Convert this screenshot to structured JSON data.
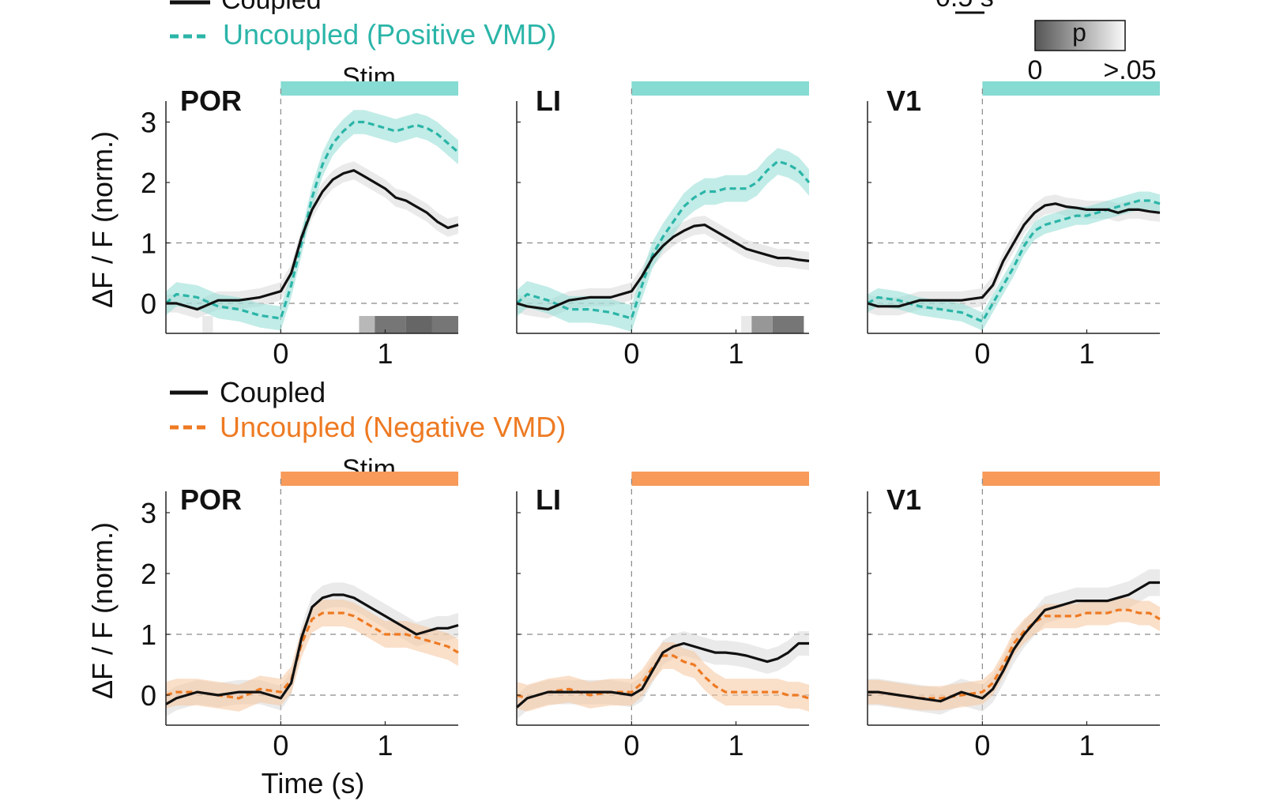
{
  "figure": {
    "scale_bar_label": "0.5 s",
    "colorbar": {
      "title": "p",
      "min_label": "0",
      "max_label": ">.05"
    }
  },
  "colors": {
    "coupled": "#111111",
    "uncoupled_positive": "#2bb5a8",
    "uncoupled_positive_band": "#8fdcd3",
    "uncoupled_negative": "#ee7a22",
    "uncoupled_negative_band": "#f5c59c",
    "stim_positive": "#86dbd2",
    "stim_negative": "#f79a5a",
    "coupled_band": "#d9d9d9"
  },
  "chart_data": [
    {
      "type": "line",
      "row": "top",
      "legend": [
        "Coupled",
        "Uncoupled (Positive VMD)"
      ],
      "stim_label": "Stim",
      "ylabel": "ΔF / F (norm.)",
      "xlabel": "",
      "xlim": [
        -1.1,
        1.7
      ],
      "ylim": [
        -0.5,
        3.3
      ],
      "xticks": [
        0,
        1
      ],
      "yticks": [
        0,
        1,
        2,
        3
      ],
      "panels": [
        {
          "title": "POR",
          "series": [
            {
              "name": "Coupled",
              "x": [
                -1.1,
                -1.0,
                -0.8,
                -0.6,
                -0.4,
                -0.2,
                0.0,
                0.1,
                0.2,
                0.3,
                0.4,
                0.5,
                0.6,
                0.7,
                0.8,
                0.9,
                1.0,
                1.1,
                1.2,
                1.3,
                1.4,
                1.5,
                1.6,
                1.7
              ],
              "y": [
                0.0,
                0.0,
                -0.1,
                0.05,
                0.05,
                0.1,
                0.2,
                0.5,
                1.1,
                1.55,
                1.85,
                2.05,
                2.15,
                2.2,
                2.1,
                2.0,
                1.9,
                1.75,
                1.7,
                1.6,
                1.5,
                1.35,
                1.25,
                1.3
              ],
              "err": 0.15
            },
            {
              "name": "Uncoupled (Positive VMD)",
              "x": [
                -1.1,
                -1.0,
                -0.8,
                -0.6,
                -0.4,
                -0.2,
                0.0,
                0.1,
                0.2,
                0.3,
                0.4,
                0.5,
                0.6,
                0.7,
                0.8,
                0.9,
                1.0,
                1.1,
                1.2,
                1.3,
                1.4,
                1.5,
                1.6,
                1.7
              ],
              "y": [
                0.0,
                0.15,
                0.1,
                -0.05,
                -0.1,
                -0.2,
                -0.25,
                0.3,
                1.0,
                1.75,
                2.3,
                2.65,
                2.85,
                3.0,
                3.0,
                2.95,
                2.9,
                2.85,
                2.9,
                2.95,
                2.9,
                2.8,
                2.65,
                2.5
              ],
              "err": 0.2
            }
          ],
          "significance": [
            {
              "x0": -0.75,
              "x1": -0.65,
              "p": 0.045
            },
            {
              "x0": 0.75,
              "x1": 0.9,
              "p": 0.03
            },
            {
              "x0": 0.9,
              "x1": 1.2,
              "p": 0.01
            },
            {
              "x0": 1.2,
              "x1": 1.45,
              "p": 0.005
            },
            {
              "x0": 1.45,
              "x1": 1.7,
              "p": 0.01
            }
          ]
        },
        {
          "title": "LI",
          "series": [
            {
              "name": "Coupled",
              "x": [
                -1.1,
                -1.0,
                -0.8,
                -0.6,
                -0.4,
                -0.2,
                0.0,
                0.1,
                0.2,
                0.3,
                0.4,
                0.5,
                0.6,
                0.7,
                0.8,
                0.9,
                1.0,
                1.1,
                1.2,
                1.3,
                1.4,
                1.5,
                1.6,
                1.7
              ],
              "y": [
                0.0,
                -0.05,
                -0.1,
                0.05,
                0.1,
                0.1,
                0.2,
                0.45,
                0.75,
                0.95,
                1.1,
                1.2,
                1.28,
                1.3,
                1.2,
                1.1,
                1.0,
                0.9,
                0.85,
                0.8,
                0.75,
                0.75,
                0.72,
                0.7
              ],
              "err": 0.15
            },
            {
              "name": "Uncoupled (Positive VMD)",
              "x": [
                -1.1,
                -1.0,
                -0.8,
                -0.6,
                -0.4,
                -0.2,
                0.0,
                0.1,
                0.2,
                0.3,
                0.4,
                0.5,
                0.6,
                0.7,
                0.8,
                0.9,
                1.0,
                1.1,
                1.2,
                1.3,
                1.4,
                1.5,
                1.6,
                1.7
              ],
              "y": [
                0.0,
                0.15,
                0.05,
                -0.1,
                -0.1,
                -0.15,
                -0.25,
                0.3,
                0.8,
                1.1,
                1.35,
                1.6,
                1.75,
                1.85,
                1.85,
                1.9,
                1.9,
                1.9,
                2.0,
                2.2,
                2.35,
                2.3,
                2.2,
                2.0
              ],
              "err": 0.22
            }
          ],
          "significance": [
            {
              "x0": 1.05,
              "x1": 1.15,
              "p": 0.045
            },
            {
              "x0": 1.15,
              "x1": 1.35,
              "p": 0.02
            },
            {
              "x0": 1.35,
              "x1": 1.65,
              "p": 0.01
            }
          ]
        },
        {
          "title": "V1",
          "series": [
            {
              "name": "Coupled",
              "x": [
                -1.1,
                -1.0,
                -0.8,
                -0.6,
                -0.4,
                -0.2,
                0.0,
                0.1,
                0.2,
                0.3,
                0.4,
                0.5,
                0.6,
                0.7,
                0.8,
                0.9,
                1.0,
                1.1,
                1.2,
                1.3,
                1.4,
                1.5,
                1.6,
                1.7
              ],
              "y": [
                0.0,
                -0.05,
                -0.05,
                0.05,
                0.05,
                0.05,
                0.1,
                0.3,
                0.7,
                1.0,
                1.3,
                1.5,
                1.62,
                1.65,
                1.6,
                1.58,
                1.55,
                1.55,
                1.55,
                1.5,
                1.55,
                1.55,
                1.52,
                1.5
              ],
              "err": 0.15
            },
            {
              "name": "Uncoupled (Positive VMD)",
              "x": [
                -1.1,
                -1.0,
                -0.8,
                -0.6,
                -0.4,
                -0.2,
                0.0,
                0.1,
                0.2,
                0.3,
                0.4,
                0.5,
                0.6,
                0.7,
                0.8,
                0.9,
                1.0,
                1.1,
                1.2,
                1.3,
                1.4,
                1.5,
                1.6,
                1.7
              ],
              "y": [
                0.0,
                0.1,
                0.05,
                -0.05,
                -0.1,
                -0.15,
                -0.3,
                0.0,
                0.3,
                0.6,
                0.95,
                1.2,
                1.3,
                1.35,
                1.4,
                1.45,
                1.45,
                1.5,
                1.55,
                1.6,
                1.65,
                1.7,
                1.7,
                1.65
              ],
              "err": 0.15
            }
          ],
          "significance": []
        }
      ]
    },
    {
      "type": "line",
      "row": "bottom",
      "legend": [
        "Coupled",
        "Uncoupled (Negative VMD)"
      ],
      "stim_label": "Stim",
      "ylabel": "ΔF / F (norm.)",
      "xlabel": "Time (s)",
      "xlim": [
        -1.1,
        1.7
      ],
      "ylim": [
        -0.5,
        3.3
      ],
      "xticks": [
        0,
        1
      ],
      "yticks": [
        0,
        1,
        2,
        3
      ],
      "panels": [
        {
          "title": "POR",
          "series": [
            {
              "name": "Coupled",
              "x": [
                -1.1,
                -1.0,
                -0.8,
                -0.6,
                -0.4,
                -0.2,
                0.0,
                0.1,
                0.2,
                0.3,
                0.4,
                0.5,
                0.6,
                0.7,
                0.8,
                0.9,
                1.0,
                1.1,
                1.2,
                1.3,
                1.4,
                1.5,
                1.6,
                1.7
              ],
              "y": [
                -0.15,
                -0.05,
                0.05,
                0.0,
                0.05,
                0.05,
                -0.05,
                0.2,
                0.95,
                1.45,
                1.6,
                1.65,
                1.65,
                1.6,
                1.5,
                1.4,
                1.3,
                1.2,
                1.1,
                1.0,
                1.05,
                1.1,
                1.1,
                1.15
              ],
              "err": 0.2
            },
            {
              "name": "Uncoupled (Negative VMD)",
              "x": [
                -1.1,
                -1.0,
                -0.8,
                -0.6,
                -0.4,
                -0.2,
                0.0,
                0.1,
                0.2,
                0.3,
                0.4,
                0.5,
                0.6,
                0.7,
                0.8,
                0.9,
                1.0,
                1.1,
                1.2,
                1.3,
                1.4,
                1.5,
                1.6,
                1.7
              ],
              "y": [
                0.0,
                0.05,
                0.05,
                0.0,
                -0.05,
                0.1,
                0.05,
                0.25,
                0.85,
                1.25,
                1.35,
                1.35,
                1.35,
                1.3,
                1.2,
                1.1,
                1.0,
                1.0,
                1.0,
                0.95,
                0.9,
                0.85,
                0.8,
                0.7
              ],
              "err": 0.22
            }
          ],
          "significance": []
        },
        {
          "title": "LI",
          "series": [
            {
              "name": "Coupled",
              "x": [
                -1.1,
                -1.0,
                -0.8,
                -0.6,
                -0.4,
                -0.2,
                0.0,
                0.1,
                0.2,
                0.3,
                0.4,
                0.5,
                0.6,
                0.7,
                0.8,
                0.9,
                1.0,
                1.1,
                1.2,
                1.3,
                1.4,
                1.5,
                1.6,
                1.7
              ],
              "y": [
                -0.2,
                -0.05,
                0.05,
                0.05,
                0.05,
                0.05,
                0.0,
                0.1,
                0.4,
                0.7,
                0.8,
                0.85,
                0.8,
                0.75,
                0.7,
                0.7,
                0.68,
                0.65,
                0.6,
                0.55,
                0.6,
                0.7,
                0.85,
                0.85
              ],
              "err": 0.2
            },
            {
              "name": "Uncoupled (Negative VMD)",
              "x": [
                -1.1,
                -1.0,
                -0.8,
                -0.6,
                -0.4,
                -0.2,
                0.0,
                0.1,
                0.2,
                0.3,
                0.4,
                0.5,
                0.6,
                0.7,
                0.8,
                0.9,
                1.0,
                1.1,
                1.2,
                1.3,
                1.4,
                1.5,
                1.6,
                1.7
              ],
              "y": [
                0.0,
                -0.05,
                0.05,
                0.1,
                0.0,
                0.05,
                0.05,
                0.2,
                0.45,
                0.65,
                0.65,
                0.55,
                0.5,
                0.3,
                0.15,
                0.05,
                0.05,
                0.05,
                0.05,
                0.05,
                0.05,
                0.0,
                0.0,
                -0.05
              ],
              "err": 0.22
            }
          ],
          "significance": []
        },
        {
          "title": "V1",
          "series": [
            {
              "name": "Coupled",
              "x": [
                -1.1,
                -1.0,
                -0.8,
                -0.6,
                -0.4,
                -0.2,
                0.0,
                0.1,
                0.2,
                0.3,
                0.4,
                0.5,
                0.6,
                0.7,
                0.8,
                0.9,
                1.0,
                1.1,
                1.2,
                1.3,
                1.4,
                1.5,
                1.6,
                1.7
              ],
              "y": [
                0.05,
                0.05,
                0.0,
                -0.05,
                -0.1,
                0.05,
                -0.05,
                0.1,
                0.4,
                0.75,
                1.0,
                1.2,
                1.4,
                1.45,
                1.5,
                1.55,
                1.55,
                1.55,
                1.55,
                1.6,
                1.65,
                1.75,
                1.85,
                1.85
              ],
              "err": 0.22
            },
            {
              "name": "Uncoupled (Negative VMD)",
              "x": [
                -1.1,
                -1.0,
                -0.8,
                -0.6,
                -0.4,
                -0.2,
                0.0,
                0.1,
                0.2,
                0.3,
                0.4,
                0.5,
                0.6,
                0.7,
                0.8,
                0.9,
                1.0,
                1.1,
                1.2,
                1.3,
                1.4,
                1.5,
                1.6,
                1.7
              ],
              "y": [
                0.05,
                0.05,
                0.0,
                -0.05,
                -0.05,
                0.0,
                0.05,
                0.2,
                0.5,
                0.85,
                1.05,
                1.2,
                1.3,
                1.3,
                1.3,
                1.3,
                1.35,
                1.35,
                1.35,
                1.4,
                1.4,
                1.35,
                1.35,
                1.25
              ],
              "err": 0.2
            }
          ],
          "significance": []
        }
      ]
    }
  ]
}
